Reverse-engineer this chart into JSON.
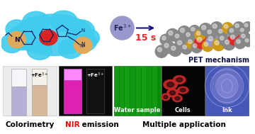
{
  "bg_color": "#ffffff",
  "probe_bg_color": "#40ccee",
  "probe_o_color": "#dd2222",
  "probe_n_color": "#e8a855",
  "fe3_circle_color": "#9898cc",
  "time_text": "15 s",
  "time_color": "#ee2222",
  "pet_text": "PET mechanism",
  "pet_text_color": "#111144",
  "colorimetry_label": "Colorimetry",
  "nir_label_nir": "NIR",
  "nir_label_rest": " emission",
  "multi_label": "Multiple application",
  "water_label": "Water sample",
  "cells_label": "Cells",
  "ink_label": "Ink",
  "tube1_color": "#b8b0d4",
  "tube2_color": "#d8b898",
  "tube1_top": "#f0eef8",
  "tube2_top": "#f0e8d8",
  "nir_bg": "#0a0a0a",
  "nir_tube1_color": "#e020b0",
  "nir_tube1_top": "#ff50ff",
  "nir_tube2_color": "#080808",
  "water_bg": "#18b818",
  "cells_bg": "#080808",
  "cells_color": "#cc2828",
  "ink_bg": "#4858b8",
  "mol_gray": "#888888",
  "mol_yellow": "#cc9918",
  "mol_red": "#dd2828",
  "mol_purple": "#9898c8",
  "arrow_color": "#111188",
  "label_fontsize": 7.5,
  "sub_label_fontsize": 6.0
}
